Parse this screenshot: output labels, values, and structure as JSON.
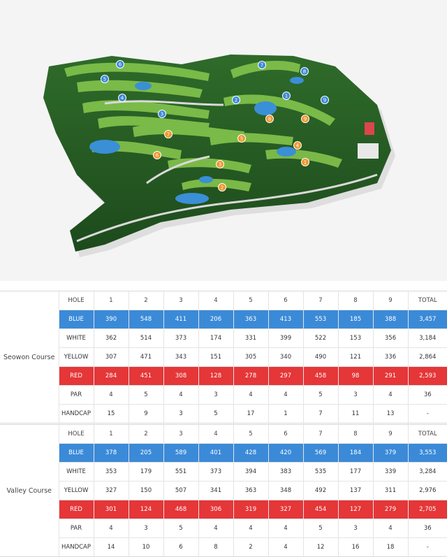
{
  "map": {
    "hole_markers": [
      {
        "num": "6",
        "color": "#3b8ad8"
      },
      {
        "num": "7",
        "color": "#3b8ad8"
      },
      {
        "num": "5",
        "color": "#3b8ad8"
      },
      {
        "num": "8",
        "color": "#3b8ad8"
      },
      {
        "num": "4",
        "color": "#3b8ad8"
      },
      {
        "num": "2",
        "color": "#3b8ad8"
      },
      {
        "num": "1",
        "color": "#3b8ad8"
      },
      {
        "num": "9",
        "color": "#3b8ad8"
      },
      {
        "num": "3",
        "color": "#3b8ad8"
      },
      {
        "num": "7",
        "color": "#f0962a"
      },
      {
        "num": "8",
        "color": "#f0962a"
      },
      {
        "num": "9",
        "color": "#f0962a"
      },
      {
        "num": "5",
        "color": "#f0962a"
      },
      {
        "num": "4",
        "color": "#f0962a"
      },
      {
        "num": "6",
        "color": "#f0962a"
      },
      {
        "num": "3",
        "color": "#f0962a"
      },
      {
        "num": "1",
        "color": "#f0962a"
      },
      {
        "num": "2",
        "color": "#f0962a"
      }
    ]
  },
  "colors": {
    "blue_row": "#3b8ad8",
    "red_row": "#e53638"
  },
  "scorecards": [
    {
      "course": "Seowon Course",
      "header": [
        "HOLE",
        "1",
        "2",
        "3",
        "4",
        "5",
        "6",
        "7",
        "8",
        "9",
        "TOTAL"
      ],
      "rows": [
        {
          "label": "BLUE",
          "values": [
            "390",
            "548",
            "411",
            "206",
            "363",
            "413",
            "553",
            "185",
            "388",
            "3,457"
          ]
        },
        {
          "label": "WHITE",
          "values": [
            "362",
            "514",
            "373",
            "174",
            "331",
            "399",
            "522",
            "153",
            "356",
            "3,184"
          ]
        },
        {
          "label": "YELLOW",
          "values": [
            "307",
            "471",
            "343",
            "151",
            "305",
            "340",
            "490",
            "121",
            "336",
            "2,864"
          ]
        },
        {
          "label": "RED",
          "values": [
            "284",
            "451",
            "308",
            "128",
            "278",
            "297",
            "458",
            "98",
            "291",
            "2,593"
          ]
        },
        {
          "label": "PAR",
          "values": [
            "4",
            "5",
            "4",
            "3",
            "4",
            "4",
            "5",
            "3",
            "4",
            "36"
          ]
        },
        {
          "label": "HANDCAP",
          "values": [
            "15",
            "9",
            "3",
            "5",
            "17",
            "1",
            "7",
            "11",
            "13",
            "-"
          ]
        }
      ]
    },
    {
      "course": "Valley Course",
      "header": [
        "HOLE",
        "1",
        "2",
        "3",
        "4",
        "5",
        "6",
        "7",
        "8",
        "9",
        "TOTAL"
      ],
      "rows": [
        {
          "label": "BLUE",
          "values": [
            "378",
            "205",
            "589",
            "401",
            "428",
            "420",
            "569",
            "184",
            "379",
            "3,553"
          ]
        },
        {
          "label": "WHITE",
          "values": [
            "353",
            "179",
            "551",
            "373",
            "394",
            "383",
            "535",
            "177",
            "339",
            "3,284"
          ]
        },
        {
          "label": "YELLOW",
          "values": [
            "327",
            "150",
            "507",
            "341",
            "363",
            "348",
            "492",
            "137",
            "311",
            "2,976"
          ]
        },
        {
          "label": "RED",
          "values": [
            "301",
            "124",
            "468",
            "306",
            "319",
            "327",
            "454",
            "127",
            "279",
            "2,705"
          ]
        },
        {
          "label": "PAR",
          "values": [
            "4",
            "3",
            "5",
            "4",
            "4",
            "4",
            "5",
            "3",
            "4",
            "36"
          ]
        },
        {
          "label": "HANDCAP",
          "values": [
            "14",
            "10",
            "6",
            "8",
            "2",
            "4",
            "12",
            "16",
            "18",
            "-"
          ]
        }
      ]
    }
  ]
}
